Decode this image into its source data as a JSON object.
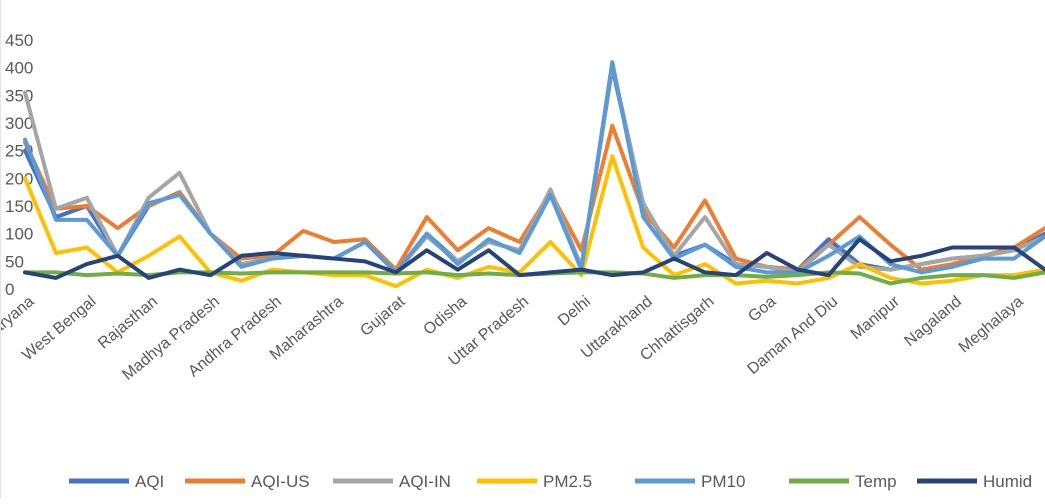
{
  "chart_data": {
    "type": "line",
    "title": "",
    "xlabel": "",
    "ylabel": "",
    "ylim": [
      0,
      450
    ],
    "yticks": [
      0,
      50,
      100,
      150,
      200,
      250,
      300,
      350,
      400,
      450
    ],
    "grid": false,
    "legend_position": "bottom",
    "x_tick_labels": [
      "Haryana",
      "West Bengal",
      "Rajasthan",
      "Madhya Pradesh",
      "Andhra Pradesh",
      "Maharashtra",
      "Gujarat",
      "Odisha",
      "Uttar Pradesh",
      "Delhi",
      "Uttarakhand",
      "Chhattisgarh",
      "Goa",
      "Daman And Diu",
      "Manipur",
      "Nagaland",
      "Meghalaya"
    ],
    "x_tick_positions": [
      1,
      3,
      5,
      7,
      9,
      11,
      13,
      15,
      17,
      19,
      21,
      23,
      25,
      27,
      29,
      31,
      33
    ],
    "x": [
      1,
      2,
      3,
      4,
      5,
      6,
      7,
      8,
      9,
      10,
      11,
      12,
      13,
      14,
      15,
      16,
      17,
      18,
      19,
      20,
      21,
      22,
      23,
      24,
      25,
      26,
      27,
      28,
      29,
      30,
      31,
      32,
      33,
      34
    ],
    "series": [
      {
        "name": "AQI",
        "color": "#4472c4",
        "values": [
          250,
          130,
          150,
          60,
          150,
          175,
          100,
          45,
          55,
          60,
          55,
          85,
          30,
          100,
          50,
          85,
          70,
          170,
          40,
          400,
          150,
          60,
          80,
          45,
          40,
          35,
          90,
          45,
          35,
          45,
          55,
          60,
          70,
          100
        ]
      },
      {
        "name": "AQI-US",
        "color": "#ed7d31",
        "values": [
          265,
          145,
          150,
          110,
          150,
          175,
          100,
          55,
          60,
          105,
          85,
          90,
          35,
          130,
          70,
          110,
          85,
          175,
          70,
          295,
          140,
          75,
          160,
          55,
          40,
          35,
          80,
          130,
          80,
          35,
          45,
          60,
          75,
          110
        ]
      },
      {
        "name": "AQI-IN",
        "color": "#a5a5a5",
        "values": [
          355,
          145,
          165,
          60,
          165,
          210,
          100,
          45,
          55,
          60,
          55,
          85,
          30,
          95,
          50,
          85,
          70,
          180,
          40,
          405,
          155,
          60,
          130,
          45,
          40,
          30,
          80,
          40,
          35,
          45,
          55,
          60,
          70,
          95
        ]
      },
      {
        "name": "PM2.5",
        "color": "#ffc000",
        "values": [
          200,
          65,
          75,
          30,
          60,
          95,
          30,
          15,
          35,
          30,
          25,
          25,
          5,
          35,
          20,
          40,
          30,
          85,
          25,
          240,
          75,
          25,
          45,
          10,
          15,
          10,
          20,
          45,
          20,
          10,
          15,
          25,
          25,
          35
        ]
      },
      {
        "name": "PM10",
        "color": "#5b9bd5",
        "values": [
          270,
          125,
          125,
          60,
          155,
          170,
          100,
          40,
          55,
          60,
          55,
          85,
          30,
          100,
          45,
          90,
          65,
          170,
          35,
          410,
          130,
          55,
          80,
          40,
          30,
          30,
          60,
          95,
          45,
          30,
          40,
          55,
          55,
          95
        ]
      },
      {
        "name": "Temp",
        "color": "#70ad47",
        "values": [
          30,
          30,
          25,
          28,
          25,
          30,
          30,
          28,
          30,
          30,
          30,
          30,
          28,
          30,
          25,
          28,
          25,
          28,
          30,
          30,
          28,
          20,
          25,
          25,
          22,
          25,
          30,
          28,
          10,
          20,
          25,
          25,
          20,
          30
        ]
      },
      {
        "name": "Humid",
        "color": "#264478",
        "values": [
          30,
          20,
          45,
          60,
          20,
          35,
          25,
          60,
          65,
          60,
          55,
          50,
          30,
          70,
          35,
          70,
          25,
          30,
          35,
          25,
          30,
          55,
          30,
          25,
          65,
          35,
          25,
          90,
          50,
          60,
          75,
          75,
          75,
          35
        ]
      }
    ]
  }
}
